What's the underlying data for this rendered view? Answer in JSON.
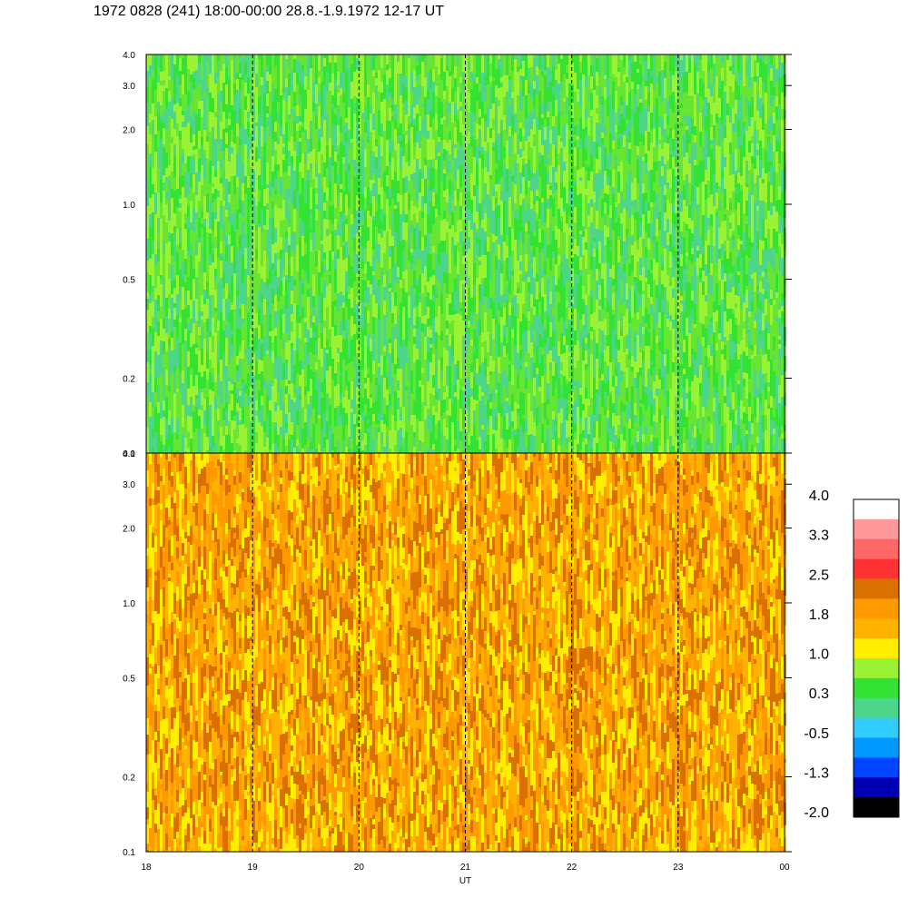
{
  "title": "1972 0828 (241) 18:00-00:00 28.8.-1.9.1972  12-17 UT",
  "chart_data": {
    "type": "heatmap",
    "title": "1972 0828 (241) 18:00-00:00 28.8.-1.9.1972  12-17 UT",
    "xlabel": "UT",
    "ylabel": "",
    "x_ticks": [
      "18",
      "19",
      "20",
      "21",
      "22",
      "23",
      "00"
    ],
    "x_range": [
      18,
      24
    ],
    "y_scale": "log",
    "y_range": [
      0.1,
      4.0
    ],
    "y_ticks": [
      "0.1",
      "0.2",
      "0.5",
      "1.0",
      "2.0",
      "3.0",
      "4.0"
    ],
    "panels": [
      {
        "name": "upper",
        "dominant_level": 0.3,
        "base_colors": [
          "#66e633",
          "#99f233",
          "#33e233",
          "#4dd68a"
        ]
      },
      {
        "name": "lower",
        "dominant_level": 1.8,
        "base_colors": [
          "#ff9900",
          "#ffb300",
          "#ffee00",
          "#d97000"
        ]
      }
    ],
    "colorbar": {
      "labels": [
        "4.0",
        "3.3",
        "2.5",
        "1.8",
        "1.0",
        "0.3",
        "-0.5",
        "-1.3",
        "-2.0"
      ],
      "colors": [
        "#ffffff",
        "#ff9999",
        "#ff6666",
        "#ff3333",
        "#d97000",
        "#ff9900",
        "#ffb300",
        "#ffee00",
        "#99f233",
        "#33e233",
        "#4dd68a",
        "#33ccff",
        "#0099ff",
        "#0044ff",
        "#0000b3",
        "#000000"
      ]
    }
  }
}
